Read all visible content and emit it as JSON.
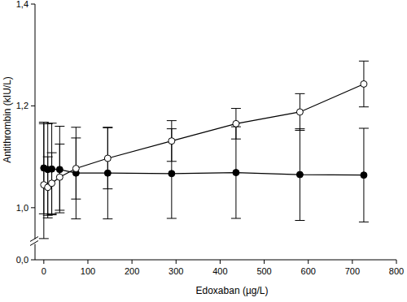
{
  "chart_data": {
    "type": "line",
    "x_label": "Edoxaban (µg/L)",
    "y_label": "Antithrombin (kIU/L)",
    "x": [
      0,
      9,
      18,
      36,
      73,
      145,
      290,
      436,
      581,
      726
    ],
    "series": [
      {
        "color": "#000000",
        "marker": "filled-circle",
        "line_style": "solid",
        "values": [
          1.078,
          1.075,
          1.076,
          1.075,
          1.068,
          1.068,
          1.067,
          1.069,
          1.065,
          1.064
        ],
        "errors": [
          0.09,
          0.09,
          0.09,
          0.085,
          0.09,
          0.09,
          0.088,
          0.09,
          0.09,
          0.092
        ]
      },
      {
        "color": "#000000",
        "marker": "open-circle",
        "line_style": "solid",
        "values": [
          1.045,
          1.04,
          1.048,
          1.06,
          1.077,
          1.097,
          1.131,
          1.165,
          1.188,
          1.243
        ],
        "errors": [
          0.12,
          0.06,
          0.06,
          0.065,
          0.06,
          0.06,
          0.04,
          0.03,
          0.036,
          0.045
        ]
      }
    ],
    "xlim": [
      -20,
      800
    ],
    "xticks": [
      0,
      100,
      200,
      300,
      400,
      500,
      600,
      700,
      800
    ],
    "ylim": [
      0,
      1.4
    ],
    "yticks": [
      {
        "value": 0,
        "label": "0,0"
      },
      {
        "value": 1,
        "label": "1,0"
      },
      {
        "value": 1.2,
        "label": "1,2"
      },
      {
        "value": 1.4,
        "label": "1,4"
      }
    ],
    "grid": false
  }
}
